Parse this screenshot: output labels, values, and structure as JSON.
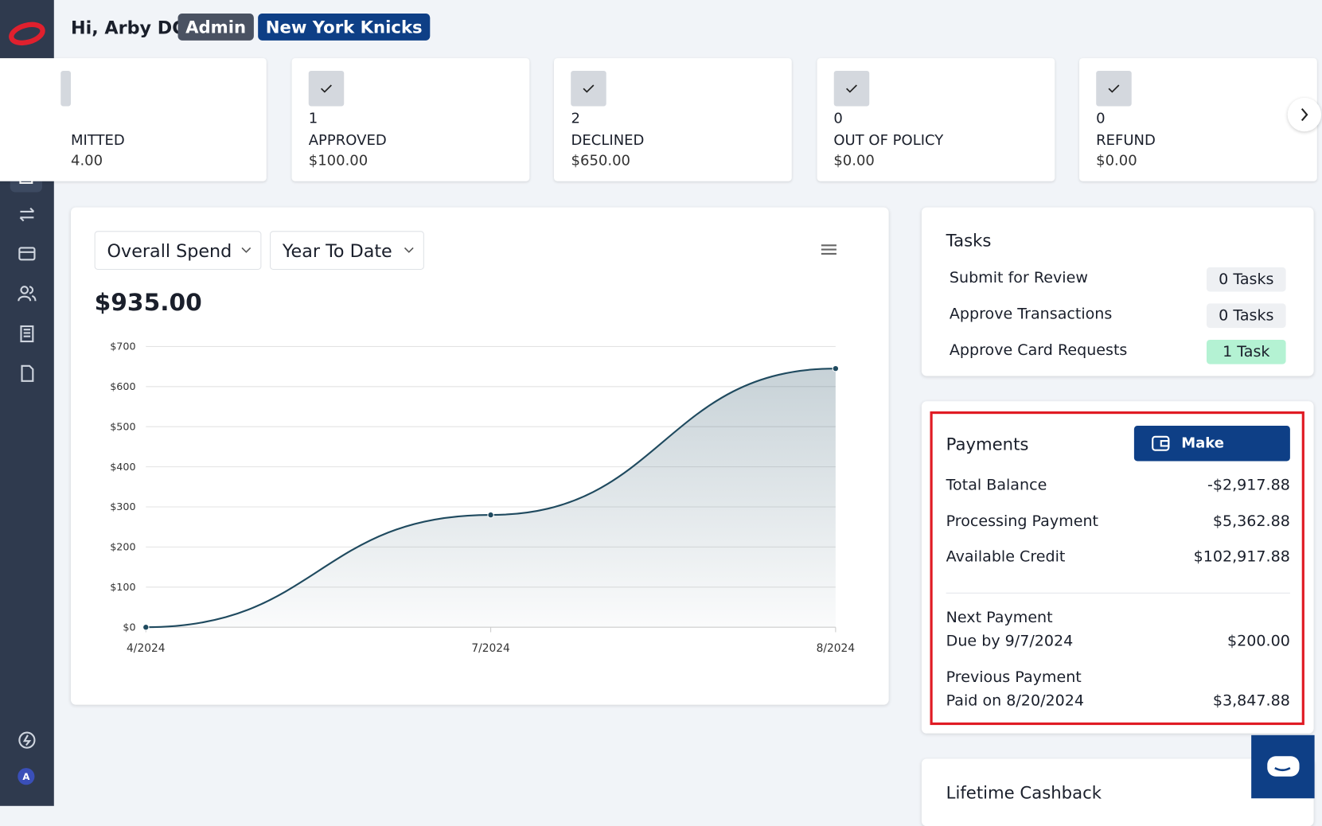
{
  "header": {
    "greeting": "Hi, Arby DG",
    "role": "Admin",
    "team": "New York Knicks"
  },
  "cards": [
    {
      "label": "MITTED",
      "amount": "4.00"
    },
    {
      "count": "1",
      "label": "APPROVED",
      "amount": "$100.00"
    },
    {
      "count": "2",
      "label": "DECLINED",
      "amount": "$650.00"
    },
    {
      "count": "0",
      "label": "OUT OF POLICY",
      "amount": "$0.00"
    },
    {
      "count": "0",
      "label": "REFUND",
      "amount": "$0.00"
    }
  ],
  "spend_panel": {
    "metric": "Overall Spend",
    "period": "Year To Date",
    "total": "$935.00"
  },
  "chart_data": {
    "type": "line",
    "categories": [
      "4/2024",
      "7/2024",
      "8/2024"
    ],
    "values": [
      0,
      280,
      645
    ],
    "color": "#1f4a5f",
    "ylim": [
      0,
      700
    ],
    "yticks": [
      {
        "value": 0,
        "label": "$0"
      },
      {
        "value": 100,
        "label": "$100"
      },
      {
        "value": 200,
        "label": "$200"
      },
      {
        "value": 300,
        "label": "$300"
      },
      {
        "value": 400,
        "label": "$400"
      },
      {
        "value": 500,
        "label": "$500"
      },
      {
        "value": 600,
        "label": "$600"
      },
      {
        "value": 700,
        "label": "$700"
      }
    ],
    "grid": true
  },
  "tasks": {
    "title": "Tasks",
    "rows": [
      {
        "label": "Submit for Review",
        "count": "0 Tasks"
      },
      {
        "label": "Approve Transactions",
        "count": "0 Tasks"
      },
      {
        "label": "Approve Card Requests",
        "count": "1 Task"
      }
    ]
  },
  "payments": {
    "title": "Payments",
    "button": "Make Payment",
    "rows": [
      {
        "label": "Total Balance",
        "value": "-$2,917.88"
      },
      {
        "label": "Processing Payment",
        "value": "$5,362.88"
      },
      {
        "label": "Available Credit",
        "value": "$102,917.88"
      }
    ],
    "next": {
      "label": "Next Payment",
      "due": "Due by 9/7/2024",
      "amount": "$200.00"
    },
    "previous": {
      "label": "Previous Payment",
      "paid": "Paid on 8/20/2024",
      "amount": "$3,847.88"
    }
  },
  "cashback": {
    "title": "Lifetime Cashback"
  }
}
